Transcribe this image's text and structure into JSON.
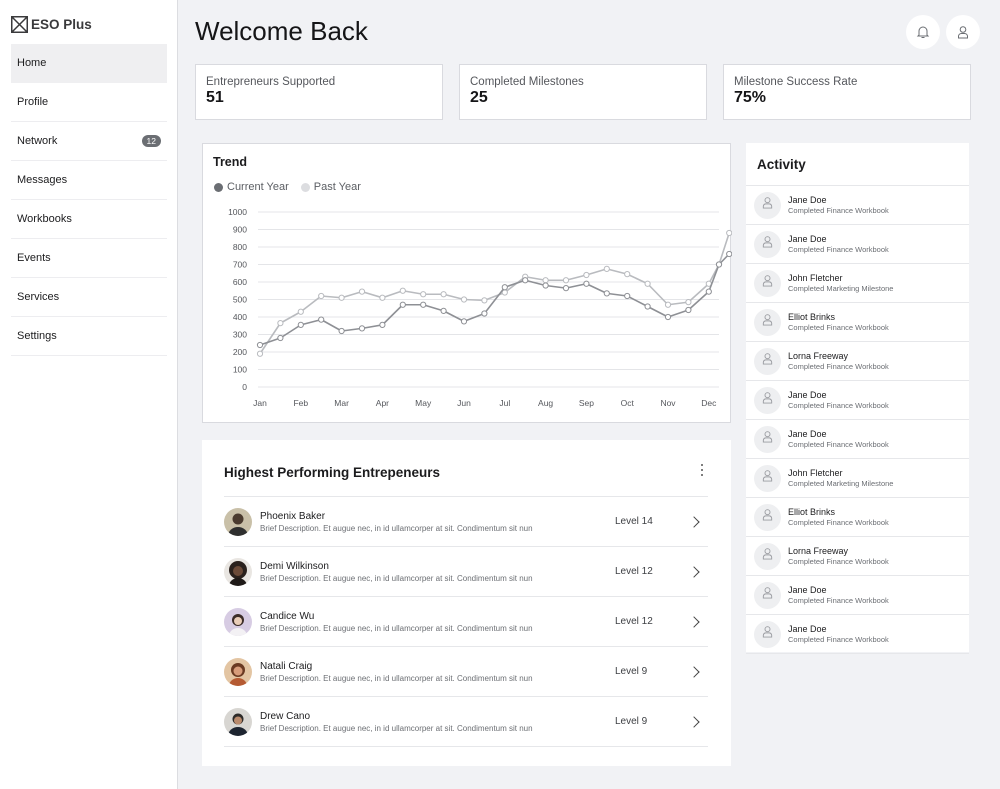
{
  "app": {
    "name": "ESO Plus"
  },
  "sidebar": {
    "items": [
      {
        "label": "Home",
        "active": true
      },
      {
        "label": "Profile"
      },
      {
        "label": "Network",
        "badge": "12"
      },
      {
        "label": "Messages"
      },
      {
        "label": "Workbooks"
      },
      {
        "label": "Events"
      },
      {
        "label": "Services"
      },
      {
        "label": "Settings"
      }
    ]
  },
  "header": {
    "title": "Welcome Back",
    "icons": [
      "bell-icon",
      "user-icon"
    ]
  },
  "stats": [
    {
      "label": "Entrepreneurs Supported",
      "value": "51"
    },
    {
      "label": "Completed Milestones",
      "value": "25"
    },
    {
      "label": "Milestone Success Rate",
      "value": "75%"
    }
  ],
  "trend": {
    "title": "Trend",
    "legend": [
      {
        "label": "Current Year",
        "color": "#6b6e73"
      },
      {
        "label": "Past Year",
        "color": "#dcdde0"
      }
    ]
  },
  "chart_data": {
    "type": "line",
    "title": "Trend",
    "categories": [
      "Jan",
      "Feb",
      "Mar",
      "Apr",
      "May",
      "Jun",
      "Jul",
      "Aug",
      "Sep",
      "Oct",
      "Nov",
      "Dec"
    ],
    "yticks": [
      "0",
      "100",
      "200",
      "300",
      "400",
      "500",
      "600",
      "700",
      "800",
      "900",
      "1000"
    ],
    "ylim": [
      0,
      1000
    ],
    "grid": true,
    "legend_position": "top-left",
    "series": [
      {
        "name": "Current Year",
        "color": "#8e9095",
        "x": [
          0,
          0.5,
          1,
          1.5,
          2,
          2.5,
          3,
          3.5,
          4,
          4.5,
          5,
          5.5,
          6,
          6.5,
          7,
          7.5,
          8,
          8.5,
          9,
          9.5,
          10,
          10.5,
          11,
          11.25,
          11.5
        ],
        "values": [
          240,
          280,
          355,
          385,
          320,
          335,
          355,
          470,
          470,
          435,
          375,
          420,
          570,
          610,
          580,
          565,
          590,
          535,
          520,
          460,
          400,
          440,
          545,
          700,
          760
        ]
      },
      {
        "name": "Past Year",
        "color": "#b9bbbf",
        "x": [
          0,
          0.5,
          1,
          1.5,
          2,
          2.5,
          3,
          3.5,
          4,
          4.5,
          5,
          5.5,
          6,
          6.5,
          7,
          7.5,
          8,
          8.5,
          9,
          9.5,
          10,
          10.5,
          11,
          11.25,
          11.5
        ],
        "values": [
          190,
          365,
          430,
          520,
          510,
          545,
          510,
          550,
          530,
          530,
          500,
          495,
          540,
          630,
          610,
          610,
          640,
          675,
          645,
          590,
          470,
          485,
          590,
          700,
          880
        ]
      }
    ]
  },
  "entrepreneurs": {
    "title": "Highest Performing Entrepeneurs",
    "rows": [
      {
        "name": "Phoenix Baker",
        "desc": "Brief Description. Et augue nec, in id ullamcorper at sit. Condimentum sit nun",
        "level": "Level 14",
        "avatar_color": "#c9c0a8"
      },
      {
        "name": "Demi Wilkinson",
        "desc": "Brief Description. Et augue nec, in id ullamcorper at sit. Condimentum sit nun",
        "level": "Level 12",
        "avatar_color": "#3b302c"
      },
      {
        "name": "Candice Wu",
        "desc": "Brief Description. Et augue nec, in id ullamcorper at sit. Condimentum sit nun",
        "level": "Level 12",
        "avatar_color": "#d7cce3"
      },
      {
        "name": "Natali Craig",
        "desc": "Brief Description. Et augue nec, in id ullamcorper at sit. Condimentum sit nun",
        "level": "Level 9",
        "avatar_color": "#e3c5a3"
      },
      {
        "name": "Drew Cano",
        "desc": "Brief Description. Et augue nec, in id ullamcorper at sit. Condimentum sit nun",
        "level": "Level 9",
        "avatar_color": "#d8d6d2"
      }
    ]
  },
  "activity": {
    "title": "Activity",
    "items": [
      {
        "name": "Jane Doe",
        "desc": "Completed Finance Workbook"
      },
      {
        "name": "Jane Doe",
        "desc": "Completed Finance Workbook"
      },
      {
        "name": "John Fletcher",
        "desc": "Completed Marketing Milestone"
      },
      {
        "name": "Elliot Brinks",
        "desc": "Completed Finance Workbook"
      },
      {
        "name": "Lorna Freeway",
        "desc": "Completed Finance Workbook"
      },
      {
        "name": "Jane Doe",
        "desc": "Completed Finance Workbook"
      },
      {
        "name": "Jane Doe",
        "desc": "Completed Finance Workbook"
      },
      {
        "name": "John Fletcher",
        "desc": "Completed Marketing Milestone"
      },
      {
        "name": "Elliot Brinks",
        "desc": "Completed Finance Workbook"
      },
      {
        "name": "Lorna Freeway",
        "desc": "Completed Finance Workbook"
      },
      {
        "name": "Jane Doe",
        "desc": "Completed Finance Workbook"
      },
      {
        "name": "Jane Doe",
        "desc": "Completed Finance Workbook"
      }
    ]
  }
}
